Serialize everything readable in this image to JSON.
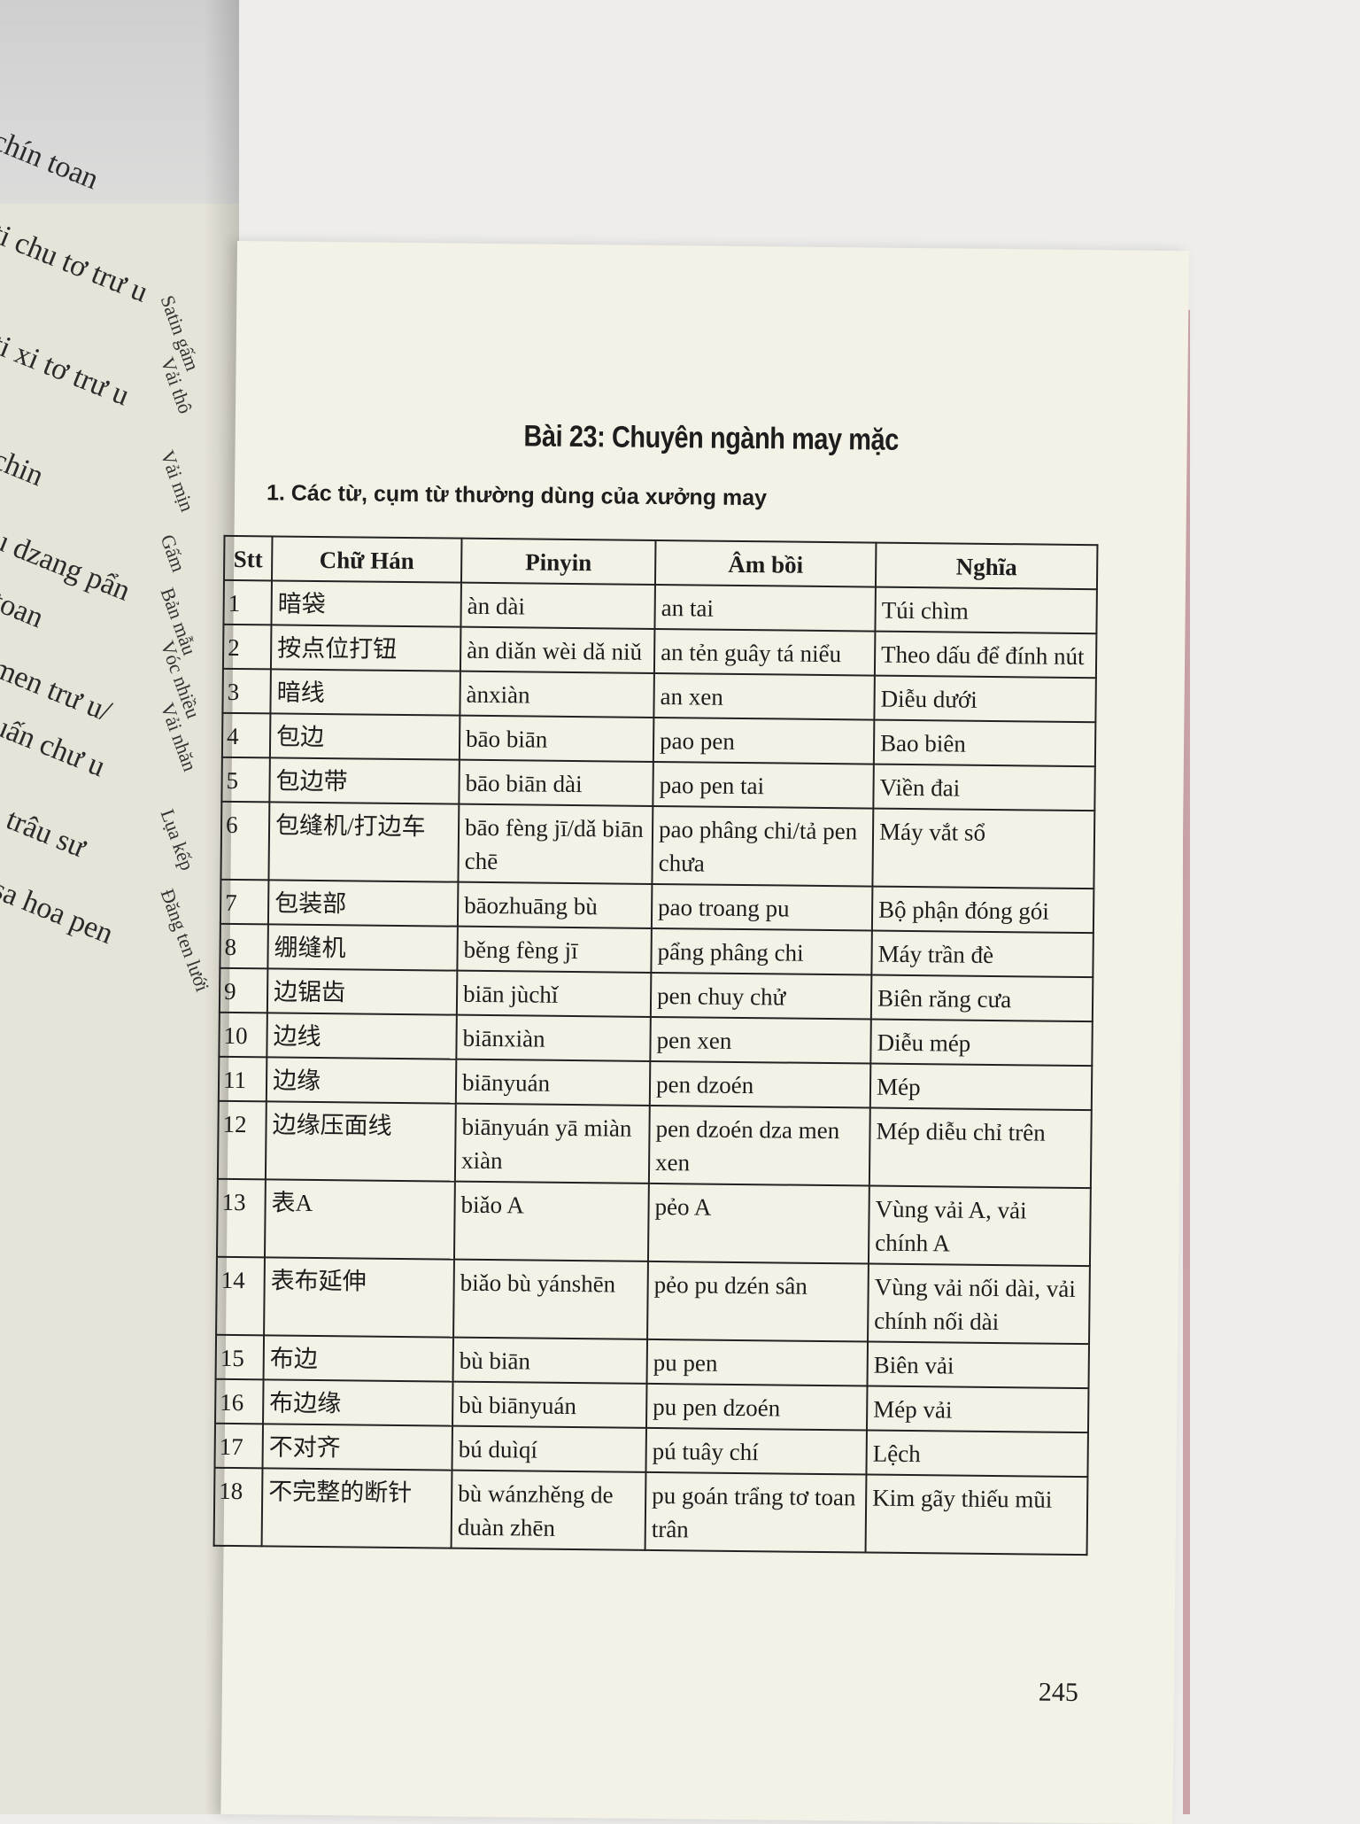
{
  "left_page": {
    "fragments": [
      "chín toan",
      "ti chu tơ trư u",
      "ti xi tơ trư u",
      "chin",
      "u dzang pẩn",
      "toan",
      "men trư u/",
      "uấn chư u",
      ", trâu sư",
      "sa hoa pen"
    ],
    "meanings": [
      "Satin gấm",
      "Vải thô",
      "Vải mịn",
      "Gấm",
      "Bản mẫu",
      "Vóc nhiều",
      "Vải nhăn",
      "Lụa kếp",
      "Đăng ten lưới"
    ]
  },
  "lesson": {
    "title": "Bài 23: Chuyên ngành may mặc",
    "subtitle": "1. Các từ, cụm từ thường dùng của xưởng may"
  },
  "table": {
    "headers": [
      "Stt",
      "Chữ Hán",
      "Pinyin",
      "Âm bồi",
      "Nghĩa"
    ],
    "rows": [
      {
        "stt": "1",
        "han": "暗袋",
        "pinyin": "àn dài",
        "am_boi": "an tai",
        "nghia": "Túi chìm"
      },
      {
        "stt": "2",
        "han": "按点位打钮",
        "pinyin": "àn diǎn wèi dǎ niǔ",
        "am_boi": "an tẻn guây tá niểu",
        "nghia": "Theo dấu để đính nút"
      },
      {
        "stt": "3",
        "han": "暗线",
        "pinyin": "ànxiàn",
        "am_boi": "an xen",
        "nghia": "Diễu dưới"
      },
      {
        "stt": "4",
        "han": "包边",
        "pinyin": "bāo biān",
        "am_boi": "pao pen",
        "nghia": "Bao biên"
      },
      {
        "stt": "5",
        "han": "包边带",
        "pinyin": "bāo biān dài",
        "am_boi": "pao pen tai",
        "nghia": "Viền đai"
      },
      {
        "stt": "6",
        "han": "包缝机/打边车",
        "pinyin": "bāo fèng jī/dǎ biān chē",
        "am_boi": "pao phâng chi/tả pen chưa",
        "nghia": "Máy vắt sổ"
      },
      {
        "stt": "7",
        "han": "包装部",
        "pinyin": "bāozhuāng bù",
        "am_boi": "pao troang pu",
        "nghia": "Bộ phận đóng gói"
      },
      {
        "stt": "8",
        "han": "绷缝机",
        "pinyin": "běng fèng jī",
        "am_boi": "pẩng phâng chi",
        "nghia": "Máy trần đè"
      },
      {
        "stt": "9",
        "han": "边锯齿",
        "pinyin": "biān jùchǐ",
        "am_boi": "pen chuy chử",
        "nghia": "Biên răng cưa"
      },
      {
        "stt": "10",
        "han": "边线",
        "pinyin": "biānxiàn",
        "am_boi": "pen xen",
        "nghia": "Diễu mép"
      },
      {
        "stt": "11",
        "han": "边缘",
        "pinyin": "biānyuán",
        "am_boi": "pen dzoén",
        "nghia": "Mép"
      },
      {
        "stt": "12",
        "han": "边缘压面线",
        "pinyin": "biānyuán yā miàn xiàn",
        "am_boi": "pen dzoén dza men xen",
        "nghia": "Mép diễu chỉ trên"
      },
      {
        "stt": "13",
        "han": "表A",
        "pinyin": "biǎo A",
        "am_boi": "pẻo A",
        "nghia": "Vùng vải A, vải chính A"
      },
      {
        "stt": "14",
        "han": "表布延伸",
        "pinyin": "biǎo bù yánshēn",
        "am_boi": "pẻo pu dzén sân",
        "nghia": "Vùng vải nối dài, vải chính nối dài"
      },
      {
        "stt": "15",
        "han": "布边",
        "pinyin": "bù biān",
        "am_boi": "pu pen",
        "nghia": "Biên vải"
      },
      {
        "stt": "16",
        "han": "布边缘",
        "pinyin": "bù biānyuán",
        "am_boi": "pu pen dzoén",
        "nghia": "Mép vải"
      },
      {
        "stt": "17",
        "han": "不对齐",
        "pinyin": "bú duìqí",
        "am_boi": "pú tuây chí",
        "nghia": "Lệch"
      },
      {
        "stt": "18",
        "han": "不完整的断针",
        "pinyin": "bù wánzhěng de duàn zhēn",
        "am_boi": "pu goán trẩng tơ toan trân",
        "nghia": "Kim gãy thiếu mũi"
      }
    ]
  },
  "page_number": "245"
}
